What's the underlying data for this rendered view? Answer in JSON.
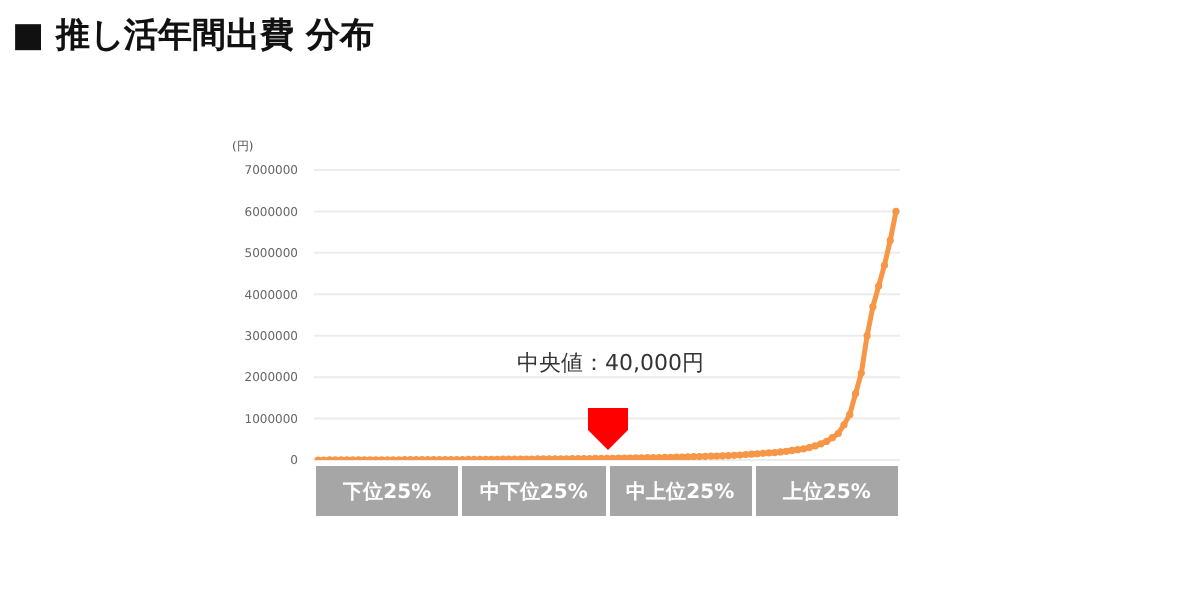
{
  "chart_data": {
    "type": "line",
    "title": "■ 推し活年間出費 分布",
    "ylabel": "(円)",
    "categories": [
      null,
      null,
      null,
      null,
      null,
      null,
      null,
      null,
      null,
      null,
      null,
      null,
      null,
      null,
      null,
      null,
      null,
      null,
      null,
      null,
      null,
      null,
      null,
      null,
      null,
      null,
      null,
      null,
      null,
      null,
      null,
      null,
      null,
      null,
      null,
      null,
      null,
      null,
      null,
      null,
      null,
      null,
      null,
      null,
      null,
      null,
      null,
      null,
      null,
      null,
      null,
      null,
      null,
      null,
      null,
      null,
      null,
      null,
      null,
      null,
      null,
      null,
      null,
      null,
      null,
      null,
      null,
      null,
      null,
      null,
      null,
      null,
      null,
      null,
      null,
      null,
      null,
      null,
      null,
      null,
      null,
      null,
      null,
      null,
      null,
      null,
      null,
      null,
      null,
      null,
      null,
      null,
      null,
      null,
      null,
      null,
      null,
      null,
      null,
      null,
      null
    ],
    "series": [
      {
        "color": "#f79646",
        "values": [
          0,
          400,
          800,
          1200,
          1600,
          2000,
          2500,
          3000,
          3500,
          4000,
          4500,
          5000,
          5500,
          6000,
          6500,
          7000,
          7500,
          8000,
          8500,
          9000,
          9500,
          10000,
          10500,
          11000,
          11500,
          12000,
          13000,
          14000,
          15000,
          16000,
          17000,
          18000,
          19000,
          20000,
          21000,
          22000,
          23000,
          24000,
          25000,
          26000,
          27000,
          28000,
          29000,
          30000,
          32000,
          33000,
          34000,
          36000,
          37000,
          38000,
          40000,
          42000,
          44000,
          46000,
          48000,
          50000,
          52000,
          55000,
          57000,
          60000,
          63000,
          66000,
          69000,
          72000,
          76000,
          80000,
          84000,
          88000,
          92000,
          96000,
          100000,
          106000,
          112000,
          120000,
          130000,
          140000,
          150000,
          160000,
          170000,
          180000,
          195000,
          210000,
          230000,
          250000,
          270000,
          300000,
          340000,
          390000,
          450000,
          540000,
          640000,
          850000,
          1100000,
          1600000,
          2100000,
          3000000,
          3700000,
          4200000,
          4700000,
          5300000,
          6000000
        ]
      }
    ],
    "ylim": [
      0,
      7000000
    ],
    "yticks": [
      0,
      1000000,
      2000000,
      3000000,
      4000000,
      5000000,
      6000000,
      7000000
    ],
    "tick_labels": "y",
    "grid": "y",
    "marker": "circle",
    "annotations": [
      "中央値：40,000円",
      "下位25%",
      "中下位25%",
      "中上位25%",
      "上位25%"
    ]
  }
}
